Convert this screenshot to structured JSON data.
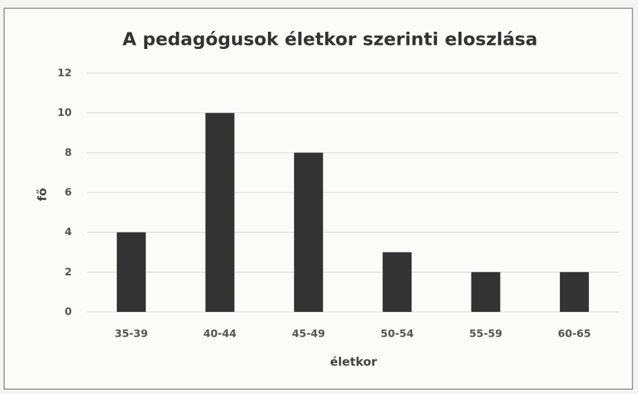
{
  "chart_data": {
    "type": "bar",
    "title": "A pedagógusok életkor szerinti eloszlása",
    "xlabel": "életkor",
    "ylabel": "fő",
    "categories": [
      "35-39",
      "40-44",
      "45-49",
      "50-54",
      "55-59",
      "60-65"
    ],
    "values": [
      4,
      10,
      8,
      3,
      2,
      2
    ],
    "color": "#333333",
    "ylim": [
      0,
      12
    ],
    "yticks": [
      0,
      2,
      4,
      6,
      8,
      10,
      12
    ],
    "grid": true
  }
}
